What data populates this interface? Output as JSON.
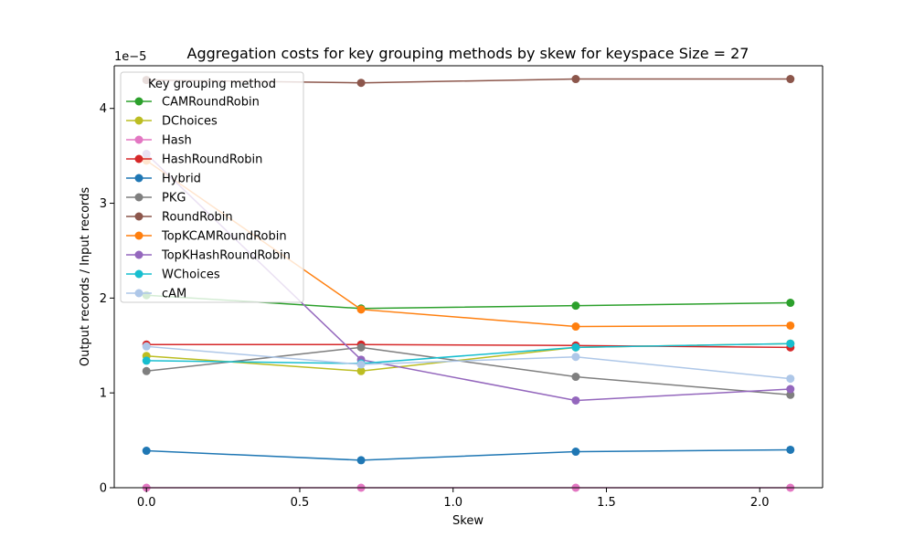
{
  "chart_data": {
    "type": "line",
    "title": "Aggregation costs for key grouping methods by skew for keyspace Size = 27",
    "xlabel": "Skew",
    "ylabel": "Output records / Input records",
    "y_offset_label": "1e−5",
    "xlim": [
      -0.105,
      2.205
    ],
    "ylim": [
      0,
      4.45
    ],
    "x_ticks": [
      0.0,
      0.5,
      1.0,
      1.5,
      2.0
    ],
    "x_tick_labels": [
      "0.0",
      "0.5",
      "1.0",
      "1.5",
      "2.0"
    ],
    "y_ticks": [
      0,
      1,
      2,
      3,
      4
    ],
    "y_tick_labels": [
      "0",
      "1",
      "2",
      "3",
      "4"
    ],
    "x": [
      0.0,
      0.7,
      1.4,
      2.1
    ],
    "grid": false,
    "legend": {
      "title": "Key grouping method",
      "placement": "upper-left"
    },
    "series": [
      {
        "name": "CAMRoundRobin",
        "color": "#2ca02c",
        "values": [
          2.03,
          1.89,
          1.92,
          1.95
        ]
      },
      {
        "name": "DChoices",
        "color": "#bcbd22",
        "values": [
          1.39,
          1.23,
          1.48,
          1.52
        ]
      },
      {
        "name": "Hash",
        "color": "#e377c2",
        "values": [
          0.0,
          0.0,
          0.0,
          0.0
        ]
      },
      {
        "name": "HashRoundRobin",
        "color": "#d62728",
        "values": [
          1.51,
          1.51,
          1.5,
          1.48
        ]
      },
      {
        "name": "Hybrid",
        "color": "#1f77b4",
        "values": [
          0.39,
          0.29,
          0.38,
          0.4
        ]
      },
      {
        "name": "PKG",
        "color": "#7f7f7f",
        "values": [
          1.23,
          1.48,
          1.17,
          0.98
        ]
      },
      {
        "name": "RoundRobin",
        "color": "#8c564b",
        "values": [
          4.3,
          4.27,
          4.31,
          4.31
        ]
      },
      {
        "name": "TopKCAMRoundRobin",
        "color": "#ff7f0e",
        "values": [
          3.45,
          1.88,
          1.7,
          1.71
        ]
      },
      {
        "name": "TopKHashRoundRobin",
        "color": "#9467bd",
        "values": [
          3.52,
          1.35,
          0.92,
          1.04
        ]
      },
      {
        "name": "WChoices",
        "color": "#17becf",
        "values": [
          1.34,
          1.31,
          1.48,
          1.52
        ]
      },
      {
        "name": "cAM",
        "color": "#aec7e8",
        "values": [
          1.49,
          1.3,
          1.38,
          1.15
        ]
      }
    ]
  }
}
